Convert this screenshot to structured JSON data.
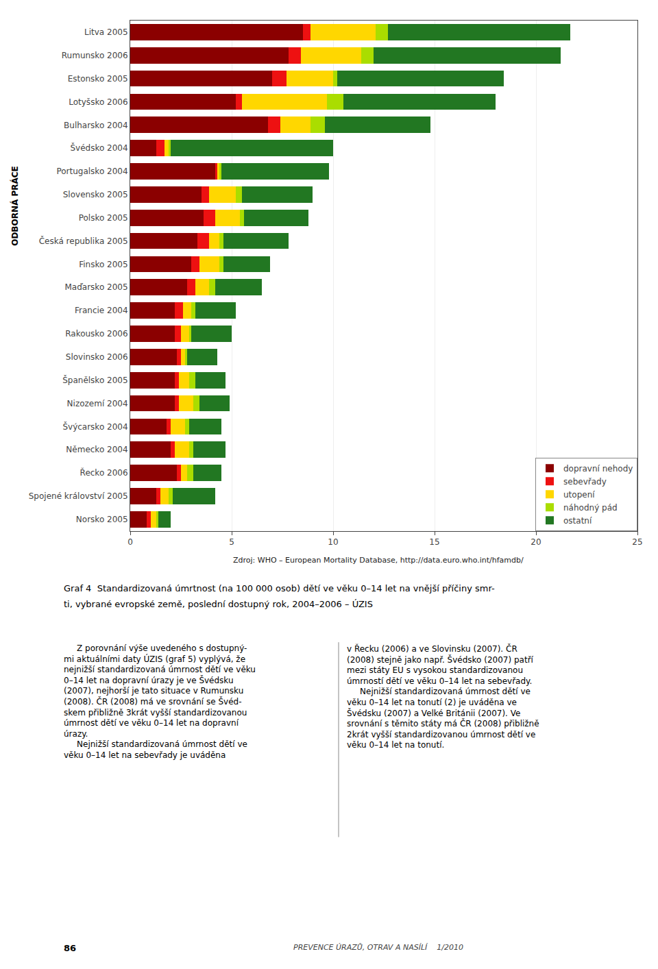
{
  "chart_data": {
    "type": "bar",
    "orientation": "horizontal",
    "stacked": true,
    "categories": [
      "Litva 2005",
      "Rumunsko 2006",
      "Estonsko 2005",
      "Lotyšsko 2006",
      "Bulharsko 2004",
      "Švédsko 2004",
      "Portugalsko 2004",
      "Slovensko 2005",
      "Polsko 2005",
      "Česká republika 2005",
      "Finsko 2005",
      "Maďarsko 2005",
      "Francie 2004",
      "Rakousko 2006",
      "Slovinsko 2006",
      "Španělsko 2005",
      "Nizozemí 2004",
      "Švýcarsko 2004",
      "Německo 2004",
      "Řecko 2006",
      "Spojené království 2005",
      "Norsko 2005"
    ],
    "series": [
      {
        "name": "dopravní nehody",
        "color": "#8B0000",
        "values": [
          8.5,
          7.8,
          7.0,
          5.2,
          6.8,
          1.3,
          4.2,
          3.5,
          3.6,
          3.3,
          3.0,
          2.8,
          2.2,
          2.2,
          2.3,
          2.2,
          2.2,
          1.8,
          2.0,
          2.3,
          1.3,
          0.8
        ]
      },
      {
        "name": "sebevřady",
        "color": "#EE1111",
        "values": [
          0.4,
          0.6,
          0.7,
          0.3,
          0.6,
          0.4,
          0.1,
          0.4,
          0.6,
          0.6,
          0.4,
          0.4,
          0.4,
          0.3,
          0.2,
          0.2,
          0.2,
          0.2,
          0.2,
          0.2,
          0.2,
          0.2
        ]
      },
      {
        "name": "utopení",
        "color": "#FFD700",
        "values": [
          3.2,
          3.0,
          2.3,
          4.2,
          1.5,
          0.2,
          0.1,
          1.3,
          1.2,
          0.5,
          1.0,
          0.7,
          0.4,
          0.4,
          0.2,
          0.5,
          0.7,
          0.7,
          0.7,
          0.3,
          0.4,
          0.3
        ]
      },
      {
        "name": "náhodný pád",
        "color": "#AADD00",
        "values": [
          0.6,
          0.6,
          0.2,
          0.8,
          0.7,
          0.1,
          0.1,
          0.3,
          0.2,
          0.2,
          0.2,
          0.3,
          0.2,
          0.1,
          0.1,
          0.3,
          0.3,
          0.2,
          0.2,
          0.3,
          0.2,
          0.1
        ]
      },
      {
        "name": "ostatní",
        "color": "#227722",
        "values": [
          9.0,
          9.2,
          8.2,
          7.5,
          5.2,
          8.0,
          5.3,
          3.5,
          3.2,
          3.2,
          2.3,
          2.3,
          2.0,
          2.0,
          1.5,
          1.5,
          1.5,
          1.6,
          1.6,
          1.4,
          2.1,
          0.6
        ]
      }
    ],
    "xlim": [
      0,
      25
    ],
    "xticks": [
      0,
      5,
      10,
      15,
      20,
      25
    ],
    "grid": true,
    "legend": "lower right",
    "annotations": [
      "Zdroj: WHO – European Mortality Database, http://data.euro.who.int/hfamdb/",
      "Graf 4  Standardizovaná úmrtnost (na 100 000 osob) dětí ve věku 0–14 let na vnější příčiny smr-",
      "ti, vybrané evropské země, poslední dostupný rok, 2004–2006 – ÚZIS",
      "     Z porovnání výše uvedeného s dostupný-\nmi aktuálními daty ÚZIS (graf 5) vyplývá, že\nnejnižší standardizovaná úmrnost dětí ve věku\n0–14 let na dopravní úrazy je ve Švédsku\n(2007), nejhorší je tato situace v Rumunsku\n(2008). ČR (2008) má ve srovnání se Švéd-\nskem přibližně 3krát vyšší standardizovanou\númrnost dětí ve věku 0–14 let na dopravní\núrazy.\n     Nejnižší standardizovaná úmrnost dětí ve\nvěku 0–14 let na sebevřady je uváděna",
      "v Řecku (2006) a ve Slovinsku (2007). ČR\n(2008) stejně jako např. Švédsko (2007) patří\nmezi státy EU s vysokou standardizovanou\númrností dětí ve věku 0–14 let na sebevřady.\n     Nejnižší standardizovaná úmrnost dětí ve\nvěku 0–14 let na tonutí (2) je uváděna ve\nŠvédsku (2007) a Velké Británii (2007). Ve\nsrovnání s těmito státy má ČR (2008) přibližně\n2krát vyšší standardizovanou úmrnost dětí ve\nvěku 0–14 let na tonutí.",
      "86",
      "PREVENCE ÚRAZŮ, OTRAV A NASÍLÍ    1/2010",
      "ODBORNÁ PRÁCE"
    ]
  }
}
